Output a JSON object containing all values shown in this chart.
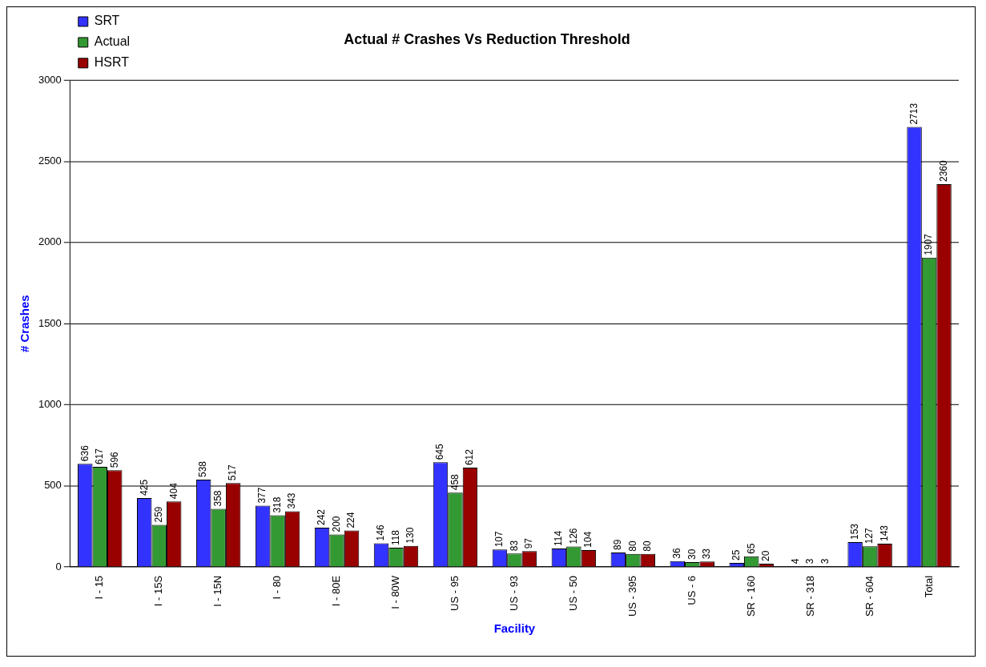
{
  "chart_data": {
    "type": "bar",
    "title": "Actual # Crashes Vs Reduction Threshold",
    "xlabel": "Facility",
    "ylabel": "# Crashes",
    "categories": [
      "I - 15",
      "I - 15S",
      "I - 15N",
      "I - 80",
      "I - 80E",
      "I - 80W",
      "US - 95",
      "US - 93",
      "US - 50",
      "US - 395",
      "US - 6",
      "SR - 160",
      "SR - 318",
      "SR - 604",
      "Total"
    ],
    "series": [
      {
        "name": "SRT",
        "color": "#3333ff",
        "values": [
          636,
          425,
          538,
          377,
          242,
          146,
          645,
          107,
          114,
          89,
          36,
          25,
          4,
          153,
          2713
        ]
      },
      {
        "name": "Actual",
        "color": "#339933",
        "values": [
          617,
          259,
          358,
          318,
          200,
          118,
          458,
          83,
          126,
          80,
          30,
          65,
          3,
          127,
          1907
        ]
      },
      {
        "name": "HSRT",
        "color": "#990000",
        "values": [
          596,
          404,
          517,
          343,
          224,
          130,
          612,
          97,
          104,
          80,
          33,
          20,
          3,
          143,
          2360
        ]
      }
    ],
    "ylim": [
      0,
      3000
    ],
    "yticks": [
      0,
      500,
      1000,
      1500,
      2000,
      2500,
      3000
    ],
    "grid": "y",
    "legend": "top left",
    "data_labels": true
  }
}
